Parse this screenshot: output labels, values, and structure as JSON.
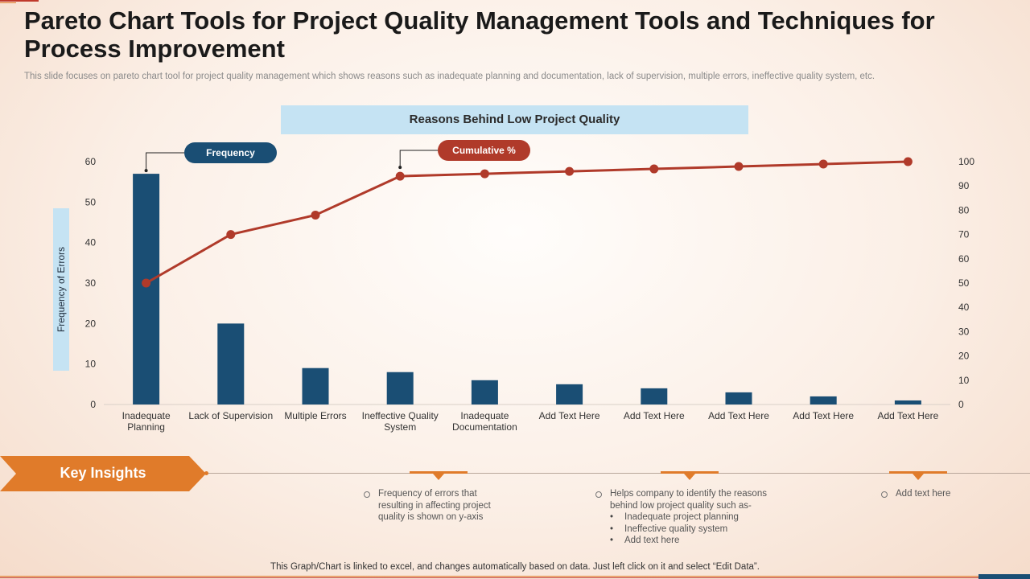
{
  "header": {
    "title": "Pareto Chart Tools for Project Quality Management Tools and Techniques for Process Improvement",
    "subtitle": "This slide focuses on pareto chart tool for project quality management which shows reasons such as inadequate planning and documentation, lack of supervision, multiple errors, ineffective quality system, etc."
  },
  "chart_data": {
    "type": "bar",
    "title": "Reasons Behind Low Project Quality",
    "ylabel": "Frequency of Errors",
    "categories": [
      "Inadequate Planning",
      "Lack of Supervision",
      "Multiple Errors",
      "Ineffective Quality System",
      "Inadequate Documentation",
      "Add Text Here",
      "Add Text Here",
      "Add Text Here",
      "Add Text Here",
      "Add Text Here"
    ],
    "category_lines": [
      [
        "Inadequate",
        "Planning"
      ],
      [
        "Lack of Supervision"
      ],
      [
        "Multiple Errors"
      ],
      [
        "Ineffective Quality",
        "System"
      ],
      [
        "Inadequate",
        "Documentation"
      ],
      [
        "Add Text Here"
      ],
      [
        "Add Text Here"
      ],
      [
        "Add Text Here"
      ],
      [
        "Add Text Here"
      ],
      [
        "Add Text Here"
      ]
    ],
    "series": [
      {
        "name": "Frequency",
        "type": "bar",
        "axis": "left",
        "color": "#1a4e74",
        "values": [
          57,
          20,
          9,
          8,
          6,
          5,
          4,
          3,
          2,
          1
        ]
      },
      {
        "name": "Cumulative %",
        "type": "line",
        "axis": "right",
        "color": "#b03a2a",
        "values": [
          50,
          70,
          78,
          94,
          95,
          96,
          97,
          98,
          99,
          100
        ]
      }
    ],
    "ylim_left": [
      0,
      60
    ],
    "yticks_left": [
      0,
      10,
      20,
      30,
      40,
      50,
      60
    ],
    "ylim_right": [
      0,
      100
    ],
    "yticks_right": [
      0,
      10,
      20,
      30,
      40,
      50,
      60,
      70,
      80,
      90,
      100
    ],
    "grid": false,
    "callouts": {
      "frequency": "Frequency",
      "cumulative": "Cumulative %"
    }
  },
  "insights": {
    "heading": "Key Insights",
    "col1": [
      "Frequency of errors that",
      "resulting in affecting project",
      "quality is shown on y-axis"
    ],
    "col2": {
      "lines": [
        "Helps company to identify the reasons",
        "behind low project quality such as-"
      ],
      "bullets": [
        "Inadequate project planning",
        "Ineffective quality system",
        "Add text here"
      ]
    },
    "col3": [
      "Add text here"
    ]
  },
  "footer": {
    "note": "This Graph/Chart is linked to excel, and changes automatically based on data. Just left click on it and select “Edit Data”."
  },
  "colors": {
    "bar": "#1a4e74",
    "line": "#b03a2a",
    "accent": "#e07b2a",
    "label_box": "#c5e3f3"
  }
}
